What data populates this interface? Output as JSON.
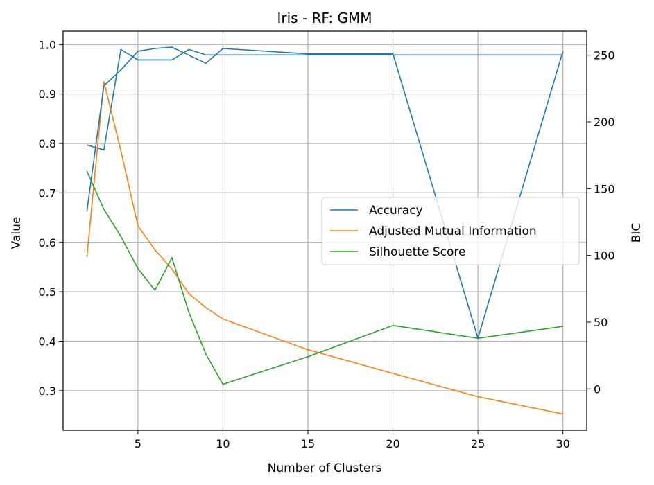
{
  "chart_data": {
    "type": "line",
    "title": "Iris - RF: GMM",
    "xlabel": "Number of Clusters",
    "ylabel": "Value",
    "y2label": "BIC",
    "xlim": [
      0.6,
      31.4
    ],
    "ylim": [
      0.22,
      1.027
    ],
    "y2lim": [
      -31,
      268
    ],
    "x_ticks": [
      5,
      10,
      15,
      20,
      25,
      30
    ],
    "y_ticks": [
      0.3,
      0.4,
      0.5,
      0.6,
      0.7,
      0.8,
      0.9,
      1.0
    ],
    "y2_ticks": [
      0,
      50,
      100,
      150,
      200,
      250
    ],
    "grid": true,
    "legend": {
      "placement": "center-right"
    },
    "series": [
      {
        "name": "Accuracy",
        "axis": "left",
        "color": "#1f77b4",
        "x": [
          2,
          3,
          4,
          5,
          6,
          7,
          8,
          9,
          10,
          15,
          20,
          25,
          30
        ],
        "y": [
          0.797,
          0.787,
          0.99,
          0.969,
          0.969,
          0.969,
          0.99,
          0.979,
          0.979,
          0.979,
          0.979,
          0.979,
          0.979
        ]
      },
      {
        "name": "Adjusted Mutual Information",
        "axis": "left",
        "color": "#ff7f0e",
        "x": [
          2,
          3,
          4,
          5,
          6,
          7,
          8,
          9,
          10,
          15,
          20,
          25,
          30
        ],
        "y": [
          0.571,
          0.925,
          0.785,
          0.633,
          0.585,
          0.546,
          0.496,
          0.468,
          0.445,
          0.383,
          0.335,
          0.288,
          0.253
        ]
      },
      {
        "name": "Silhouette Score",
        "axis": "left",
        "color": "#2ca02c",
        "x": [
          2,
          3,
          4,
          5,
          6,
          7,
          8,
          9,
          10,
          15,
          20,
          25,
          30
        ],
        "y": [
          0.744,
          0.667,
          0.612,
          0.547,
          0.503,
          0.569,
          0.458,
          0.374,
          0.313,
          0.369,
          0.432,
          0.406,
          0.43
        ]
      },
      {
        "name": "",
        "axis": "right",
        "color": "#1f77b4",
        "x": [
          2,
          3,
          4,
          5,
          6,
          7,
          8,
          9,
          10,
          15,
          20,
          25,
          30
        ],
        "y": [
          133,
          227,
          239,
          253,
          255,
          256,
          250,
          244,
          255,
          251,
          251,
          38,
          253
        ]
      }
    ]
  }
}
